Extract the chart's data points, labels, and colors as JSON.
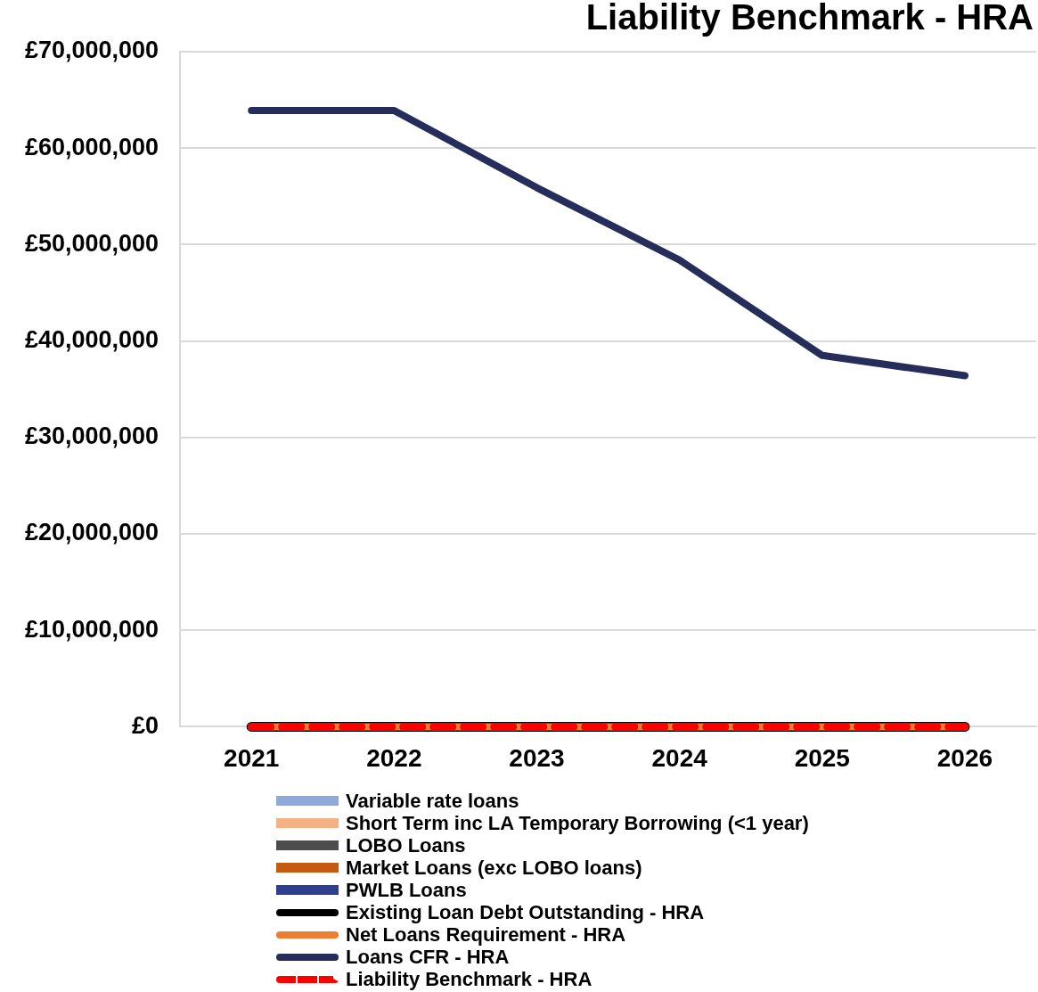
{
  "chart_data": {
    "type": "line",
    "title": "Liability Benchmark - HRA",
    "categories": [
      "2021",
      "2022",
      "2023",
      "2024",
      "2025",
      "2026"
    ],
    "series": [
      {
        "name": "Variable rate loans",
        "type": "area",
        "color": "#8eaadb",
        "values": [
          null,
          null,
          null,
          null,
          null,
          null
        ]
      },
      {
        "name": "Short Term inc LA Temporary Borrowing (<1 year)",
        "type": "area",
        "color": "#f4b183",
        "values": [
          null,
          null,
          null,
          null,
          null,
          null
        ]
      },
      {
        "name": "LOBO Loans",
        "type": "area",
        "color": "#4d4d4d",
        "values": [
          null,
          null,
          null,
          null,
          null,
          null
        ]
      },
      {
        "name": "Market Loans (exc LOBO loans)",
        "type": "area",
        "color": "#c55a11",
        "values": [
          null,
          null,
          null,
          null,
          null,
          null
        ]
      },
      {
        "name": "PWLB Loans",
        "type": "area",
        "color": "#2f3f8f",
        "values": [
          null,
          null,
          null,
          null,
          null,
          null
        ]
      },
      {
        "name": "Existing Loan Debt Outstanding - HRA",
        "color": "#000000",
        "values": [
          0,
          0,
          0,
          0,
          0,
          0
        ]
      },
      {
        "name": "Net Loans Requirement - HRA",
        "color": "#ed7d31",
        "values": [
          0,
          0,
          0,
          0,
          0,
          0
        ]
      },
      {
        "name": "Loans CFR - HRA",
        "color": "#252d5a",
        "values": [
          63900000,
          63900000,
          55900000,
          48400000,
          38500000,
          36400000
        ]
      },
      {
        "name": "Liability Benchmark - HRA",
        "line_style": "dashed",
        "color": "#ff0000",
        "values": [
          0,
          0,
          0,
          0,
          0,
          0
        ]
      }
    ],
    "ylim": [
      0,
      70000000
    ],
    "yticks": [
      {
        "value": 0,
        "label": "£0"
      },
      {
        "value": 10000000,
        "label": "£10,000,000"
      },
      {
        "value": 20000000,
        "label": "£20,000,000"
      },
      {
        "value": 30000000,
        "label": "£30,000,000"
      },
      {
        "value": 40000000,
        "label": "£40,000,000"
      },
      {
        "value": 50000000,
        "label": "£50,000,000"
      },
      {
        "value": 60000000,
        "label": "£60,000,000"
      },
      {
        "value": 70000000,
        "label": "£70,000,000"
      }
    ],
    "grid": "y",
    "legend": "bottom",
    "marker": "none"
  }
}
